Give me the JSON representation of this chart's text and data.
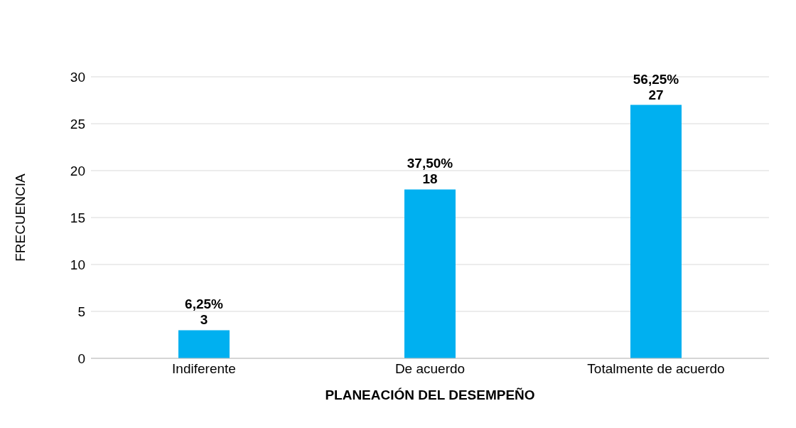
{
  "chart_data": {
    "type": "bar",
    "categories": [
      "Indiferente",
      "De acuerdo",
      "Totalmente de acuerdo"
    ],
    "values": [
      3,
      18,
      27
    ],
    "value_labels": [
      "6,25%\n3",
      "37,50%\n18",
      "56,25%\n27"
    ],
    "color": "#00b0f0",
    "xlabel": "PLANEACIÓN DEL DESEMPEÑO",
    "ylabel": "FRECUENCIA",
    "ylim": [
      0,
      30
    ],
    "yticks": [
      0,
      5,
      10,
      15,
      20,
      25,
      30
    ],
    "grid": "y",
    "legend": false
  }
}
